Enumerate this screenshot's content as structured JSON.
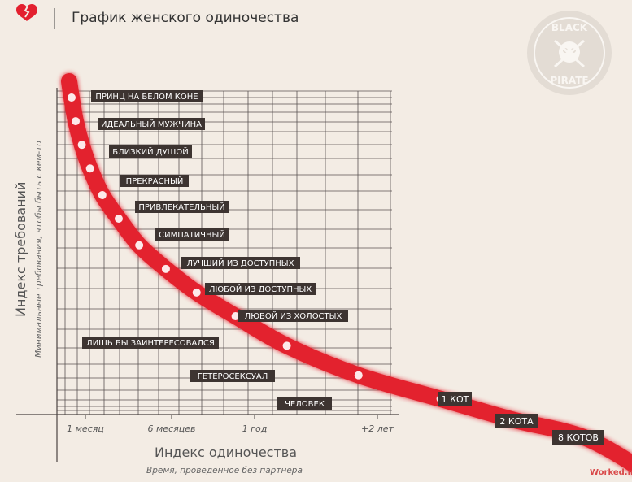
{
  "header": {
    "title": "График женского одиночества",
    "icon": "broken-heart-icon"
  },
  "watermark": {
    "logo_text_top": "BLACK",
    "logo_text_bottom": "PIRATE",
    "site": "Worked.ms"
  },
  "colors": {
    "curve": "#e3202f",
    "label_bg": "#3d3431",
    "grid": "#5a5352",
    "background": "#f3ece4"
  },
  "chart_data": {
    "type": "line",
    "title": "График женского одиночества",
    "xlabel": "Индекс одиночества",
    "xlabel_sub": "Время, проведенное без партнера",
    "ylabel": "Индекс требований",
    "ylabel_sub": "Минимальные требования, чтобы быть с кем-то",
    "x_ticks": [
      "1 месяц",
      "6 месяцев",
      "1 год",
      "+2 лет"
    ],
    "grid": true,
    "series": [
      {
        "points": [
          {
            "x": 0.0,
            "y": 100,
            "label": "ПРИНЦ НА БЕЛОМ КОНЕ"
          },
          {
            "x": 0.2,
            "y": 92,
            "label": "ИДЕАЛЬНЫЙ МУЖЧИНА"
          },
          {
            "x": 0.5,
            "y": 84,
            "label": "БЛИЗКИЙ ДУШОЙ"
          },
          {
            "x": 0.9,
            "y": 76,
            "label": "ПРЕКРАСНЫЙ"
          },
          {
            "x": 1.5,
            "y": 67,
            "label": "ПРИВЛЕКАТЕЛЬНЫЙ"
          },
          {
            "x": 2.3,
            "y": 59,
            "label": "СИМПАТИЧНЫЙ"
          },
          {
            "x": 3.3,
            "y": 50,
            "label": "ЛУЧШИЙ ИЗ ДОСТУПНЫХ"
          },
          {
            "x": 4.6,
            "y": 42,
            "label": "ЛЮБОЙ ИЗ ДОСТУПНЫХ"
          },
          {
            "x": 6.1,
            "y": 34,
            "label": "ЛЮБОЙ ИЗ ХОЛОСТЫХ"
          },
          {
            "x": 8.0,
            "y": 26,
            "label": "ЛИШЬ БЫ ЗАИНТЕРЕСОВАЛСЯ"
          },
          {
            "x": 10.5,
            "y": 16,
            "label": "ГЕТЕРОСЕКСУАЛ"
          },
          {
            "x": 14.0,
            "y": 6,
            "label": "ЧЕЛОВЕК"
          },
          {
            "x": 18.0,
            "y": -2,
            "label": "1 КОТ"
          },
          {
            "x": 21.5,
            "y": -9,
            "label": "2 КОТА"
          },
          {
            "x": 25.0,
            "y": -15,
            "label": "8 КОТОВ"
          }
        ]
      }
    ]
  }
}
